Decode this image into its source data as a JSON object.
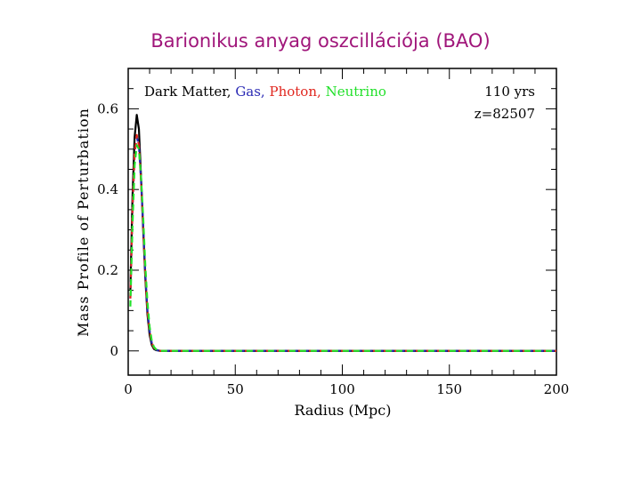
{
  "chart_data": {
    "type": "line",
    "title": "Barionikus anyag oszcillációja (BAO)",
    "xlabel": "Radius (Mpc)",
    "ylabel": "Mass Profile of Perturbation",
    "xlim": [
      0,
      200
    ],
    "ylim": [
      -0.06,
      0.7
    ],
    "xticks": [
      0,
      50,
      100,
      150,
      200
    ],
    "xtick_labels": [
      "0",
      "50",
      "100",
      "150",
      "200"
    ],
    "yticks": [
      0,
      0.2,
      0.4,
      0.6
    ],
    "ytick_labels": [
      "0",
      "0.2",
      "0.4",
      "0.6"
    ],
    "grid": false,
    "legend_position": "top-left",
    "legend_separator": ", ",
    "annotations": [
      "110 yrs",
      "z=82507"
    ],
    "series": [
      {
        "name": "Dark Matter",
        "color": "#000000",
        "dash": "solid",
        "x": [
          1,
          2,
          3,
          4,
          5,
          6,
          7,
          8,
          9,
          10,
          11,
          12,
          13,
          14,
          15,
          20,
          50,
          100,
          150,
          200
        ],
        "y": [
          0.15,
          0.38,
          0.53,
          0.585,
          0.55,
          0.43,
          0.3,
          0.18,
          0.09,
          0.04,
          0.015,
          0.005,
          0.002,
          0.001,
          0.0,
          0.0,
          0.0,
          0.0,
          0.0,
          0.0
        ]
      },
      {
        "name": "Gas",
        "color": "#2a2ab4",
        "dash": "dashed",
        "x": [
          1,
          2,
          3,
          4,
          5,
          6,
          7,
          8,
          9,
          10,
          11,
          12,
          13,
          14,
          15,
          20,
          50,
          100,
          150,
          200
        ],
        "y": [
          0.13,
          0.35,
          0.49,
          0.53,
          0.51,
          0.42,
          0.31,
          0.19,
          0.1,
          0.05,
          0.02,
          0.008,
          0.003,
          0.001,
          0.0,
          0.0,
          0.0,
          0.0,
          0.0,
          0.0
        ]
      },
      {
        "name": "Photon",
        "color": "#e0261e",
        "dash": "dashed",
        "x": [
          1,
          2,
          3,
          4,
          5,
          6,
          7,
          8,
          9,
          10,
          11,
          12,
          13,
          14,
          15,
          20,
          50,
          100,
          150,
          200
        ],
        "y": [
          0.13,
          0.35,
          0.49,
          0.535,
          0.51,
          0.42,
          0.31,
          0.19,
          0.1,
          0.05,
          0.02,
          0.008,
          0.003,
          0.001,
          0.0,
          0.0,
          0.0,
          0.0,
          0.0,
          0.0
        ]
      },
      {
        "name": "Neutrino",
        "color": "#22e02a",
        "dash": "dashed",
        "x": [
          1,
          2,
          3,
          4,
          5,
          6,
          7,
          8,
          9,
          10,
          11,
          12,
          13,
          14,
          15,
          20,
          50,
          100,
          150,
          200
        ],
        "y": [
          0.11,
          0.31,
          0.46,
          0.51,
          0.5,
          0.43,
          0.33,
          0.21,
          0.12,
          0.06,
          0.025,
          0.01,
          0.004,
          0.001,
          0.0,
          0.0,
          0.0,
          0.0,
          0.0,
          0.0
        ]
      }
    ]
  }
}
